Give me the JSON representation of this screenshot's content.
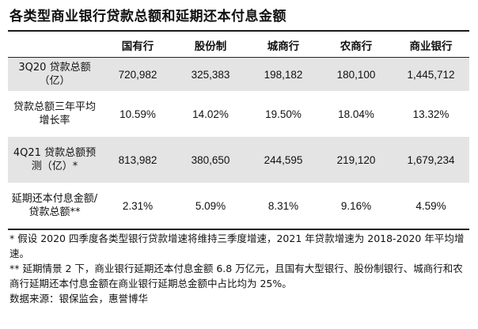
{
  "title": "各类型商业银行贷款总额和延期还本付息金额",
  "table": {
    "headers": [
      "",
      "国有行",
      "股份制",
      "城商行",
      "农商行",
      "商业银行"
    ],
    "rows": [
      {
        "label": "3Q20 贷款总额（亿）",
        "values": [
          "720,982",
          "325,383",
          "198,182",
          "180,100",
          "1,445,712"
        ]
      },
      {
        "label": "贷款总额三年平均增长率",
        "values": [
          "10.59%",
          "14.02%",
          "19.50%",
          "18.04%",
          "13.32%"
        ]
      },
      {
        "label": "4Q21 贷款总额预测（亿）*",
        "values": [
          "813,982",
          "380,650",
          "244,595",
          "219,120",
          "1,679,234"
        ]
      },
      {
        "label": "延期还本付息金额/贷款总额**",
        "values": [
          "2.31%",
          "5.09%",
          "8.31%",
          "9.16%",
          "4.59%"
        ]
      }
    ]
  },
  "notes": {
    "note1": "* 假设 2020 四季度各类型银行贷款增速将维持三季度增速，2021 年贷款增速为 2018-2020 年平均增速。",
    "note2": "** 延期情景 2 下，商业银行延期还本付息金额 6.8 万亿元，且国有大型银行、股份制银行、城商行和农商行延期还本付息金额在商业银行延期总金额中占比均为 25%。",
    "source": "数据来源：银保监会，惠誉博华"
  }
}
